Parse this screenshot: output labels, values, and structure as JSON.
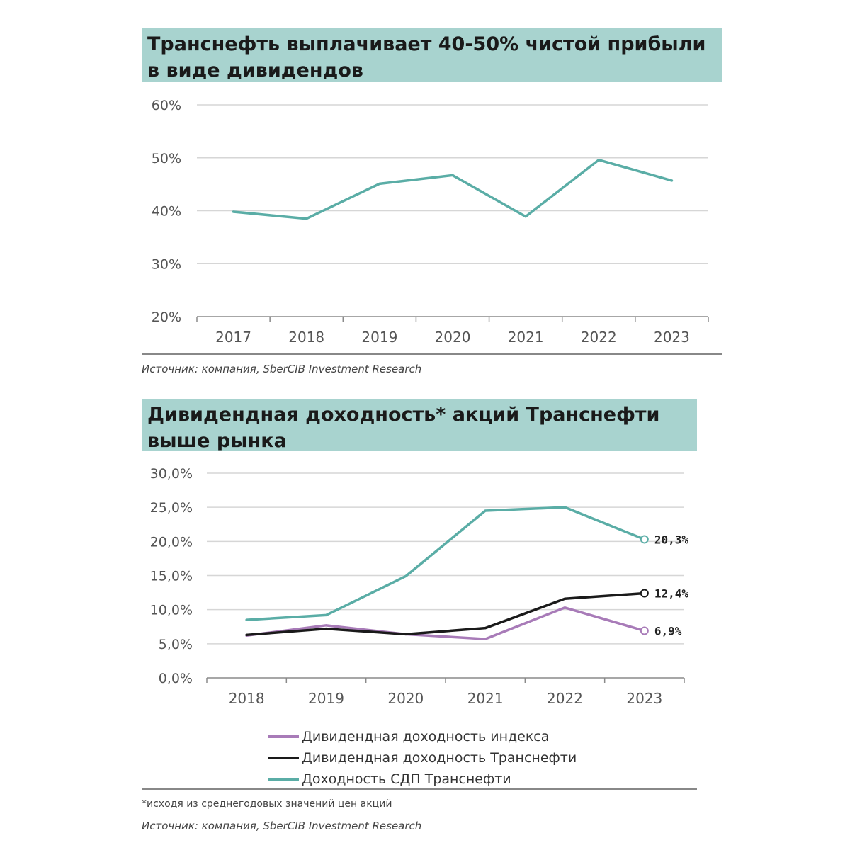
{
  "chart1": {
    "title": "Транснефть выплачивает 40-50% чистой прибыли в виде дивидендов",
    "source": "Источник: компания, SberCIB Investment Research"
  },
  "chart2": {
    "title": "Дивидендная доходность* акций Транснефти выше рынка",
    "note": "*исходя из среднегодовых значений цен акций",
    "source": "Источник: компания, SberCIB Investment Research"
  },
  "chart_data": [
    {
      "type": "line",
      "title": "Транснефть выплачивает 40-50% чистой прибыли в виде дивидендов",
      "x": [
        "2017",
        "2018",
        "2019",
        "2020",
        "2021",
        "2022",
        "2023"
      ],
      "series": [
        {
          "values": [
            39.8,
            38.5,
            45.1,
            46.7,
            38.9,
            49.6,
            45.7
          ],
          "color": "#5aada6"
        }
      ],
      "ylim": [
        20,
        60
      ],
      "yticks": [
        "20%",
        "30%",
        "40%",
        "50%",
        "60%"
      ],
      "grid": true
    },
    {
      "type": "line",
      "title": "Дивидендная доходность* акций Транснефти выше рынка",
      "x": [
        "2018",
        "2019",
        "2020",
        "2021",
        "2022",
        "2023"
      ],
      "series": [
        {
          "name": "Дивидендная доходность индекса",
          "values": [
            6.2,
            7.7,
            6.4,
            5.7,
            10.3,
            6.9
          ],
          "color": "#a87bb8",
          "end_label": "6,9%"
        },
        {
          "name": "Дивидендная доходность Транснефти",
          "values": [
            6.3,
            7.2,
            6.4,
            7.3,
            11.6,
            12.4
          ],
          "color": "#1a1a1a",
          "end_label": "12,4%"
        },
        {
          "name": "Доходность СДП Транснефти",
          "values": [
            8.5,
            9.2,
            14.9,
            24.5,
            25.0,
            20.3
          ],
          "color": "#5aada6",
          "end_label": "20,3%"
        }
      ],
      "ylim": [
        0,
        30
      ],
      "yticks": [
        "0,0%",
        "5,0%",
        "10,0%",
        "15,0%",
        "20,0%",
        "25,0%",
        "30,0%"
      ],
      "grid": true,
      "legend": "bottom"
    }
  ]
}
